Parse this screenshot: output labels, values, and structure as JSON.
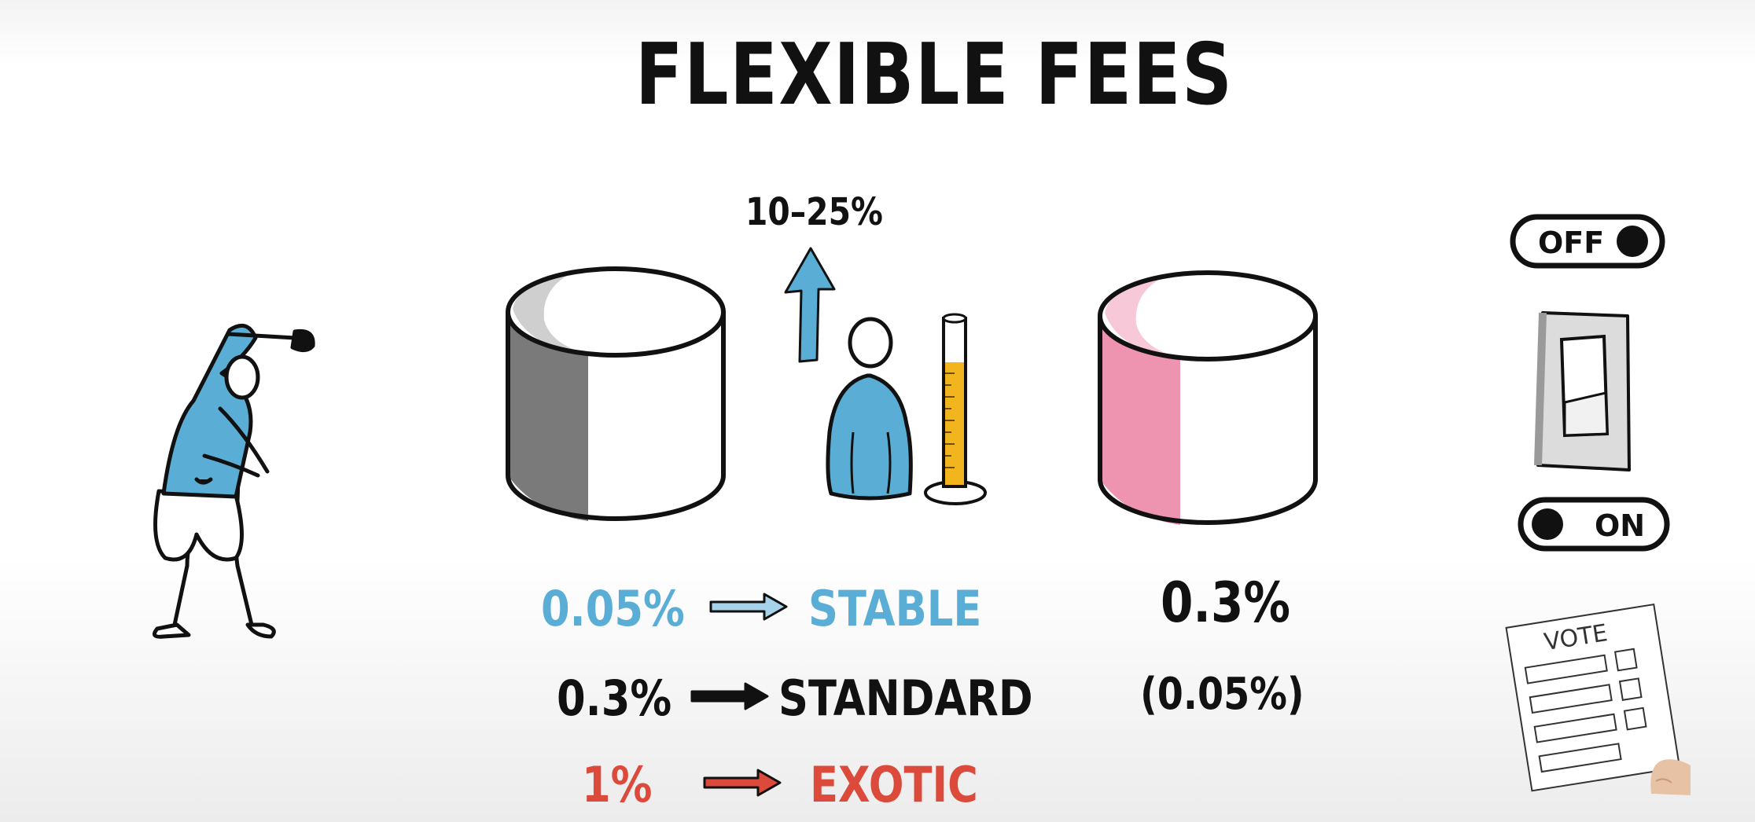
{
  "title": "FLEXIBLE FEES",
  "boost_label": "10–25%",
  "fee_tiers": [
    {
      "fee": "0.05%",
      "label": "STABLE",
      "color": "#5aaed6"
    },
    {
      "fee": "0.3%",
      "label": "STANDARD",
      "color": "#111111"
    },
    {
      "fee": "1%",
      "label": "EXOTIC",
      "color": "#db4a3a"
    }
  ],
  "right_pool": {
    "fee": "0.3%",
    "alt_fee": "(0.05%)"
  },
  "toggle_off": "OFF",
  "toggle_on": "ON",
  "ballot_title": "VOTE",
  "colors": {
    "blue": "#5aaed6",
    "red": "#db4a3a",
    "pink": "#ee94b0",
    "gray": "#7a7a7a",
    "gold": "#f3b51e"
  }
}
